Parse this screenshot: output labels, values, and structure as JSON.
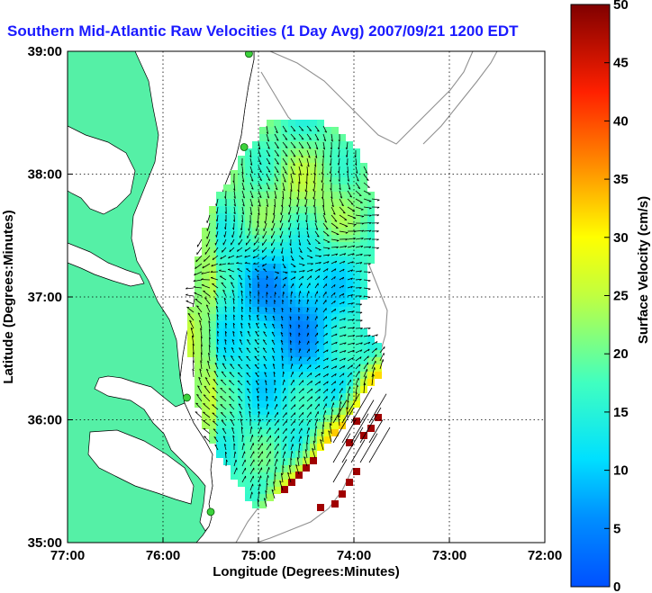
{
  "chart_data": {
    "type": "heatmap",
    "title": "Southern Mid-Atlantic Raw Velocities (1 Day Avg) 2007/09/21 1200 EDT",
    "xlabel": "Longitude (Degrees:Minutes)",
    "ylabel": "Latitude (Degrees:Minutes)",
    "colorbar_label": "Surface Velocity (cm/s)",
    "x_ticks": [
      "77:00",
      "76:00",
      "75:00",
      "74:00",
      "73:00",
      "72:00"
    ],
    "x_tick_values": [
      -77,
      -76,
      -75,
      -74,
      -73,
      -72
    ],
    "y_ticks": [
      "39:00",
      "38:00",
      "37:00",
      "36:00",
      "35:00"
    ],
    "y_tick_values": [
      39,
      38,
      37,
      36,
      35
    ],
    "xlim": [
      -77,
      -72
    ],
    "ylim": [
      35,
      39
    ],
    "colorbar_ticks": [
      "50",
      "45",
      "40",
      "35",
      "30",
      "25",
      "20",
      "15",
      "10",
      "5",
      "0"
    ],
    "colorbar_tick_values": [
      50,
      45,
      40,
      35,
      30,
      25,
      20,
      15,
      10,
      5,
      0
    ],
    "colorbar_range": [
      0,
      50
    ],
    "grid": true,
    "land_color": "#55f0a6",
    "colormap": "jet",
    "stations": [
      {
        "lon": -75.1,
        "lat": 38.98
      },
      {
        "lon": -75.15,
        "lat": 38.22
      },
      {
        "lon": -75.75,
        "lat": 36.18
      },
      {
        "lon": -75.5,
        "lat": 35.25
      }
    ]
  }
}
